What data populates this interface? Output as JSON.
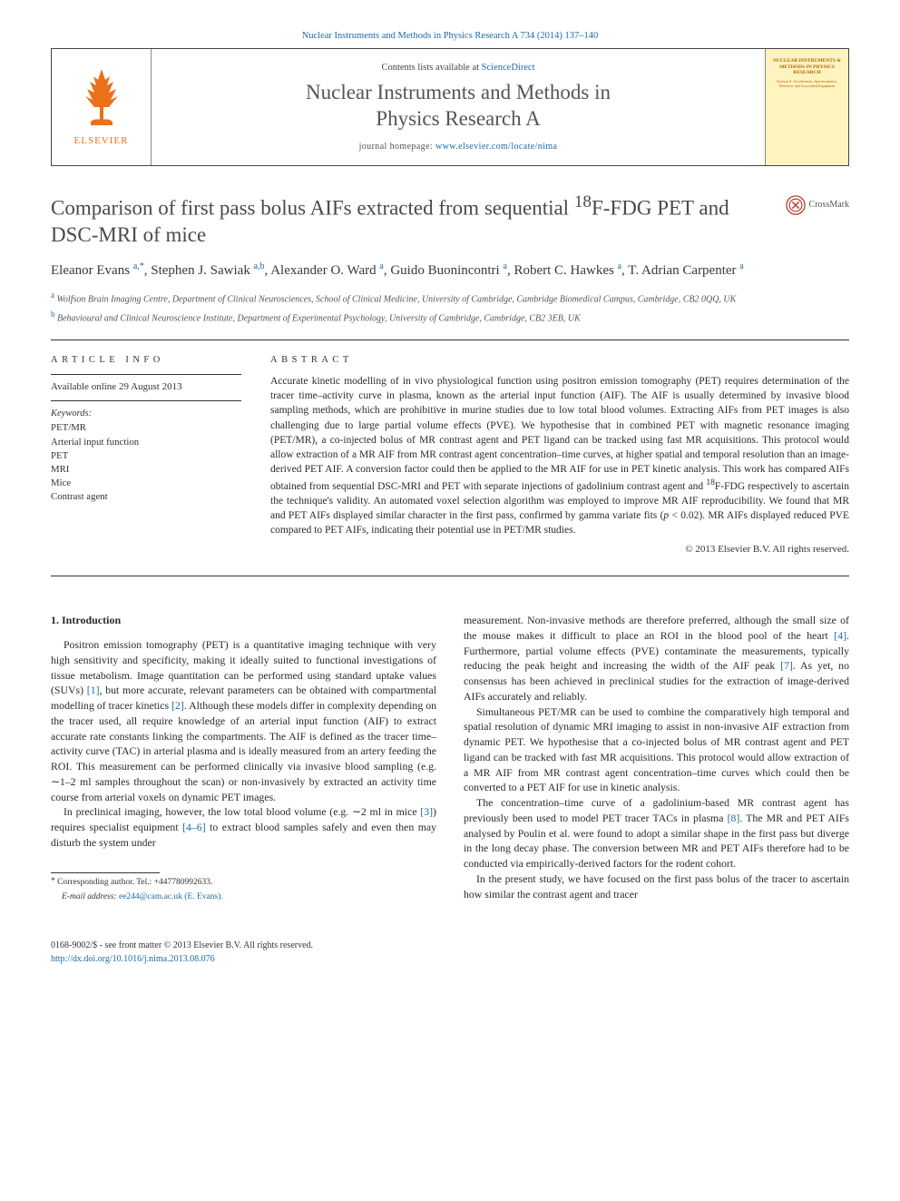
{
  "topbar": {
    "text": "Nuclear Instruments and Methods in Physics Research A 734 (2014) 137–140",
    "link_text": "Nuclear Instruments and Methods in Physics Research A 734 (2014) 137–140"
  },
  "journal_header": {
    "elsevier_label": "ELSEVIER",
    "contents_prefix": "Contents lists available at ",
    "contents_link": "ScienceDirect",
    "title_line1": "Nuclear Instruments and Methods in",
    "title_line2": "Physics Research A",
    "homepage_prefix": "journal homepage: ",
    "homepage_link": "www.elsevier.com/locate/nima",
    "cover_title": "NUCLEAR INSTRUMENTS & METHODS IN PHYSICS RESEARCH",
    "cover_sub": "Section A: Accelerators, Spectrometers, Detectors and Associated Equipment"
  },
  "article": {
    "title_html": "Comparison of first pass bolus AIFs extracted from sequential <sup>18</sup>F-FDG PET and DSC-MRI of mice",
    "crossmark": "CrossMark",
    "authors_html": "Eleanor Evans <span class='aff-sup'>a,*</span>, Stephen J. Sawiak <span class='aff-sup'>a,b</span>, Alexander O. Ward <span class='aff-sup'>a</span>, Guido Buonincontri <span class='aff-sup'>a</span>, Robert C. Hawkes <span class='aff-sup'>a</span>, T. Adrian Carpenter <span class='aff-sup'>a</span>",
    "affiliations": [
      {
        "mark": "a",
        "text": "Wolfson Brain Imaging Centre, Department of Clinical Neurosciences, School of Clinical Medicine, University of Cambridge, Cambridge Biomedical Campus, Cambridge, CB2 0QQ, UK"
      },
      {
        "mark": "b",
        "text": "Behavioural and Clinical Neuroscience Institute, Department of Experimental Psychology, University of Cambridge, Cambridge, CB2 3EB, UK"
      }
    ]
  },
  "info": {
    "head": "ARTICLE INFO",
    "online": "Available online 29 August 2013",
    "keywords_label": "Keywords:",
    "keywords": [
      "PET/MR",
      "Arterial input function",
      "PET",
      "MRI",
      "Mice",
      "Contrast agent"
    ]
  },
  "abstract": {
    "head": "ABSTRACT",
    "text_html": "Accurate kinetic modelling of in vivo physiological function using positron emission tomography (PET) requires determination of the tracer time–activity curve in plasma, known as the arterial input function (AIF). The AIF is usually determined by invasive blood sampling methods, which are prohibitive in murine studies due to low total blood volumes. Extracting AIFs from PET images is also challenging due to large partial volume effects (PVE). We hypothesise that in combined PET with magnetic resonance imaging (PET/MR), a co-injected bolus of MR contrast agent and PET ligand can be tracked using fast MR acquisitions. This protocol would allow extraction of a MR AIF from MR contrast agent concentration–time curves, at higher spatial and temporal resolution than an image-derived PET AIF. A conversion factor could then be applied to the MR AIF for use in PET kinetic analysis. This work has compared AIFs obtained from sequential DSC-MRI and PET with separate injections of gadolinium contrast agent and <sup>18</sup>F-FDG respectively to ascertain the technique's validity. An automated voxel selection algorithm was employed to improve MR AIF reproducibility. We found that MR and PET AIFs displayed similar character in the first pass, confirmed by gamma variate fits (<i>p</i> &lt; 0.02). MR AIFs displayed reduced PVE compared to PET AIFs, indicating their potential use in PET/MR studies.",
    "copyright": "© 2013 Elsevier B.V. All rights reserved."
  },
  "body": {
    "section_head": "1.  Introduction",
    "p1_html": "Positron emission tomography (PET) is a quantitative imaging technique with very high sensitivity and specificity, making it ideally suited to functional investigations of tissue metabolism. Image quantitation can be performed using standard uptake values (SUVs) <span class='ref-link'>[1]</span>, but more accurate, relevant parameters can be obtained with compartmental modelling of tracer kinetics <span class='ref-link'>[2]</span>. Although these models differ in complexity depending on the tracer used, all require knowledge of an arterial input function (AIF) to extract accurate rate constants linking the compartments. The AIF is defined as the tracer time–activity curve (TAC) in arterial plasma and is ideally measured from an artery feeding the ROI. This measurement can be performed clinically via invasive blood sampling (e.g. ∼1–2 ml samples throughout the scan) or non-invasively by extracted an activity time course from arterial voxels on dynamic PET images.",
    "p2_html": "In preclinical imaging, however, the low total blood volume (e.g. ∼2 ml in mice <span class='ref-link'>[3]</span>) requires specialist equipment <span class='ref-link'>[4–6]</span> to extract blood samples safely and even then may disturb the system under",
    "p3_html": "measurement. Non-invasive methods are therefore preferred, although the small size of the mouse makes it difficult to place an ROI in the blood pool of the heart <span class='ref-link'>[4]</span>. Furthermore, partial volume effects (PVE) contaminate the measurements, typically reducing the peak height and increasing the width of the AIF peak <span class='ref-link'>[7]</span>. As yet, no consensus has been achieved in preclinical studies for the extraction of image-derived AIFs accurately and reliably.",
    "p4_html": "Simultaneous PET/MR can be used to combine the comparatively high temporal and spatial resolution of dynamic MRI imaging to assist in non-invasive AIF extraction from dynamic PET. We hypothesise that a co-injected bolus of MR contrast agent and PET ligand can be tracked with fast MR acquisitions. This protocol would allow extraction of a MR AIF from MR contrast agent concentration–time curves which could then be converted to a PET AIF for use in kinetic analysis.",
    "p5_html": "The concentration–time curve of a gadolinium-based MR contrast agent has previously been used to model PET tracer TACs in plasma <span class='ref-link'>[8]</span>. The MR and PET AIFs analysed by Poulin et al. were found to adopt a similar shape in the first pass but diverge in the long decay phase. The conversion between MR and PET AIFs therefore had to be conducted via empirically-derived factors for the rodent cohort.",
    "p6_html": "In the present study, we have focused on the first pass bolus of the tracer to ascertain how similar the contrast agent and tracer"
  },
  "footer": {
    "corr_html": "<span class='star'>*</span> Corresponding author. Tel.: +447780992633.",
    "email_prefix": "E-mail address: ",
    "email": "ee244@cam.ac.uk (E. Evans).",
    "issn_line": "0168-9002/$ - see front matter © 2013 Elsevier B.V. All rights reserved.",
    "doi": "http://dx.doi.org/10.1016/j.nima.2013.08.076"
  },
  "colors": {
    "link": "#1b6aa8",
    "elsevier_orange": "#e9711c",
    "cover_bg": "#fff4bf",
    "cover_text": "#b85c00",
    "body_text": "#2a2a2a",
    "rule": "#333333"
  }
}
